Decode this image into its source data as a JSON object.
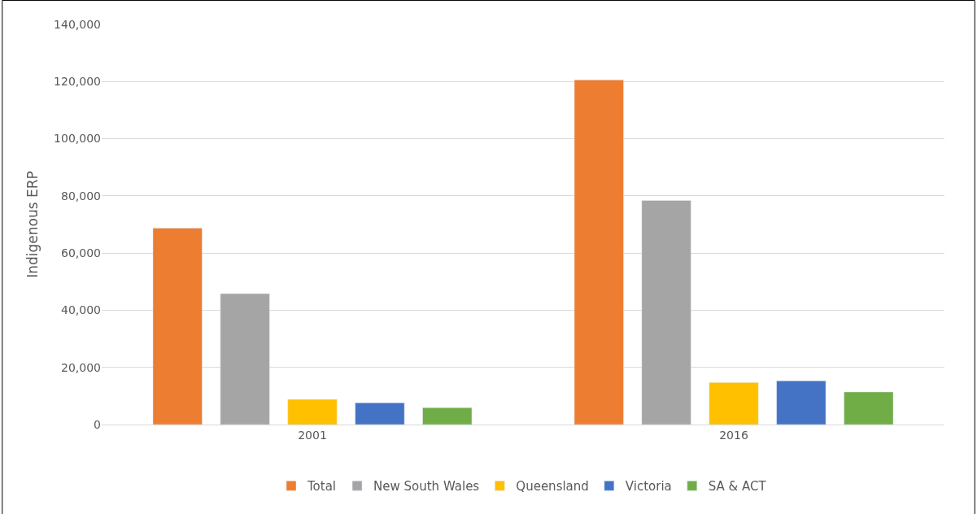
{
  "chart_data": {
    "type": "bar",
    "ylabel": "Indigenous ERP",
    "categories": [
      "2001",
      "2016"
    ],
    "series": [
      {
        "name": "Total",
        "color": "#ed7d31",
        "values": [
          68700,
          120600
        ]
      },
      {
        "name": "New South Wales",
        "color": "#a5a5a5",
        "values": [
          45800,
          78400
        ]
      },
      {
        "name": "Queensland",
        "color": "#ffc000",
        "values": [
          8800,
          14700
        ]
      },
      {
        "name": "Victoria",
        "color": "#4472c4",
        "values": [
          7600,
          15300
        ]
      },
      {
        "name": "SA & ACT",
        "color": "#70ad47",
        "values": [
          5900,
          11400
        ]
      }
    ],
    "ylim": [
      0,
      140000
    ],
    "yticks": [
      {
        "value": 0,
        "label": "0"
      },
      {
        "value": 20000,
        "label": "20,000"
      },
      {
        "value": 40000,
        "label": "40,000"
      },
      {
        "value": 60000,
        "label": "60,000"
      },
      {
        "value": 80000,
        "label": "80,000"
      },
      {
        "value": 100000,
        "label": "100,000"
      },
      {
        "value": 120000,
        "label": "120,000"
      },
      {
        "value": 140000,
        "label": "140,000"
      }
    ],
    "grid": "y",
    "legend": "bottom"
  }
}
